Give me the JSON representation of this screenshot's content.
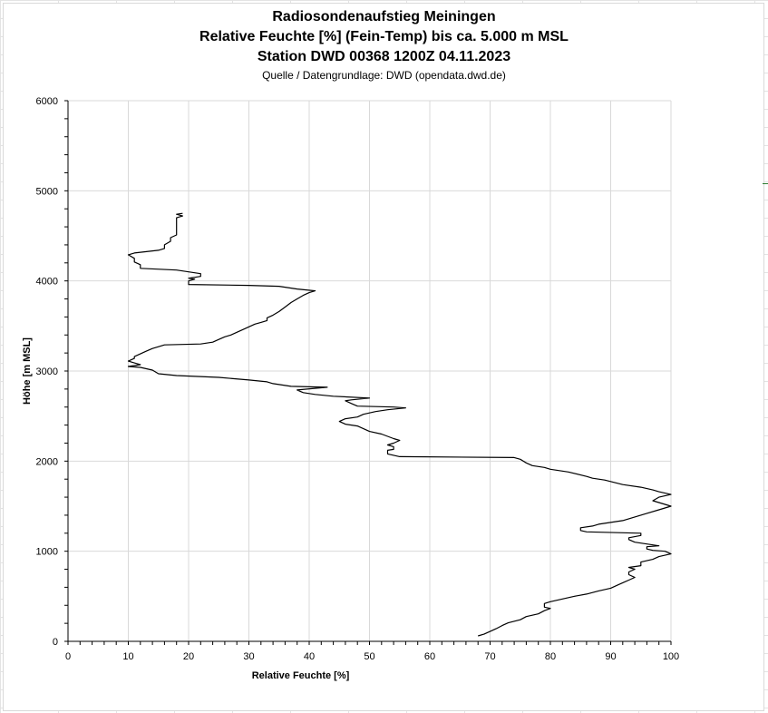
{
  "chart_data": {
    "type": "line",
    "title": "Radiosondenaufstieg Meiningen",
    "subtitle_1": "Relative Feuchte [%] (Fein-Temp) bis ca. 5.000 m MSL",
    "subtitle_2": "Station DWD 00368 1200Z 04.11.2023",
    "source": "Quelle / Datengrundlage: DWD (opendata.dwd.de)",
    "xlabel": "Relative Feuchte [%]",
    "ylabel": "Höhe [m MSL]",
    "xlim": [
      0,
      100
    ],
    "ylim": [
      0,
      6000
    ],
    "x_ticks": [
      0,
      10,
      20,
      30,
      40,
      50,
      60,
      70,
      80,
      90,
      100
    ],
    "y_ticks": [
      0,
      1000,
      2000,
      3000,
      4000,
      5000,
      6000
    ],
    "grid": true,
    "line_color": "#000000",
    "series": [
      {
        "points": [
          [
            68,
            60
          ],
          [
            69,
            80
          ],
          [
            70,
            110
          ],
          [
            71,
            140
          ],
          [
            72,
            175
          ],
          [
            73,
            205
          ],
          [
            75,
            240
          ],
          [
            76,
            275
          ],
          [
            78,
            305
          ],
          [
            79,
            340
          ],
          [
            80,
            365
          ],
          [
            79,
            380
          ],
          [
            79,
            420
          ],
          [
            80,
            440
          ],
          [
            82,
            470
          ],
          [
            84,
            500
          ],
          [
            86,
            525
          ],
          [
            88,
            560
          ],
          [
            90,
            590
          ],
          [
            91,
            620
          ],
          [
            92,
            650
          ],
          [
            93,
            680
          ],
          [
            94,
            710
          ],
          [
            93,
            740
          ],
          [
            93,
            770
          ],
          [
            94,
            800
          ],
          [
            93,
            820
          ],
          [
            95,
            840
          ],
          [
            95,
            880
          ],
          [
            97,
            910
          ],
          [
            98,
            940
          ],
          [
            100,
            970
          ],
          [
            99,
            1000
          ],
          [
            97,
            1010
          ],
          [
            96,
            1025
          ],
          [
            96,
            1050
          ],
          [
            98,
            1060
          ],
          [
            96,
            1080
          ],
          [
            94,
            1100
          ],
          [
            93,
            1130
          ],
          [
            93,
            1150
          ],
          [
            95,
            1175
          ],
          [
            95,
            1200
          ],
          [
            86,
            1215
          ],
          [
            85,
            1230
          ],
          [
            85,
            1260
          ],
          [
            87,
            1280
          ],
          [
            88,
            1300
          ],
          [
            92,
            1340
          ],
          [
            94,
            1380
          ],
          [
            96,
            1420
          ],
          [
            98,
            1460
          ],
          [
            100,
            1500
          ],
          [
            98,
            1540
          ],
          [
            97,
            1560
          ],
          [
            98,
            1600
          ],
          [
            100,
            1630
          ],
          [
            98,
            1660
          ],
          [
            97,
            1680
          ],
          [
            95,
            1710
          ],
          [
            92,
            1740
          ],
          [
            89,
            1790
          ],
          [
            87,
            1810
          ],
          [
            86,
            1830
          ],
          [
            83,
            1880
          ],
          [
            80,
            1910
          ],
          [
            79,
            1930
          ],
          [
            77,
            1950
          ],
          [
            76,
            1980
          ],
          [
            75,
            2020
          ],
          [
            74,
            2040
          ],
          [
            55,
            2050
          ],
          [
            53,
            2080
          ],
          [
            53,
            2120
          ],
          [
            54,
            2130
          ],
          [
            54,
            2160
          ],
          [
            53,
            2180
          ],
          [
            54,
            2200
          ],
          [
            55,
            2230
          ],
          [
            54,
            2250
          ],
          [
            52,
            2300
          ],
          [
            50,
            2330
          ],
          [
            49,
            2360
          ],
          [
            48,
            2390
          ],
          [
            46,
            2410
          ],
          [
            45,
            2440
          ],
          [
            46,
            2470
          ],
          [
            48,
            2490
          ],
          [
            49,
            2520
          ],
          [
            51,
            2550
          ],
          [
            53,
            2570
          ],
          [
            56,
            2590
          ],
          [
            54,
            2600
          ],
          [
            48,
            2610
          ],
          [
            47,
            2640
          ],
          [
            46,
            2670
          ],
          [
            47,
            2680
          ],
          [
            50,
            2700
          ],
          [
            44,
            2720
          ],
          [
            41,
            2740
          ],
          [
            39,
            2760
          ],
          [
            38,
            2790
          ],
          [
            43,
            2820
          ],
          [
            37,
            2830
          ],
          [
            34,
            2860
          ],
          [
            33,
            2880
          ],
          [
            30,
            2900
          ],
          [
            25,
            2930
          ],
          [
            18,
            2950
          ],
          [
            15,
            2970
          ],
          [
            14,
            3010
          ],
          [
            12,
            3040
          ],
          [
            10,
            3050
          ],
          [
            12,
            3070
          ],
          [
            11,
            3090
          ],
          [
            10,
            3110
          ],
          [
            11,
            3140
          ],
          [
            11,
            3160
          ],
          [
            12,
            3190
          ],
          [
            13,
            3220
          ],
          [
            14,
            3250
          ],
          [
            15,
            3270
          ],
          [
            16,
            3290
          ],
          [
            22,
            3300
          ],
          [
            24,
            3320
          ],
          [
            25,
            3350
          ],
          [
            26,
            3380
          ],
          [
            27,
            3400
          ],
          [
            28,
            3430
          ],
          [
            29,
            3460
          ],
          [
            30,
            3490
          ],
          [
            31,
            3520
          ],
          [
            32,
            3540
          ],
          [
            33,
            3560
          ],
          [
            33,
            3590
          ],
          [
            34,
            3620
          ],
          [
            35,
            3660
          ],
          [
            36,
            3710
          ],
          [
            37,
            3760
          ],
          [
            38,
            3800
          ],
          [
            39,
            3840
          ],
          [
            40,
            3870
          ],
          [
            41,
            3890
          ],
          [
            38,
            3910
          ],
          [
            35,
            3940
          ],
          [
            30,
            3950
          ],
          [
            20,
            3960
          ],
          [
            20,
            4000
          ],
          [
            21,
            4020
          ],
          [
            20,
            4030
          ],
          [
            22,
            4050
          ],
          [
            22,
            4080
          ],
          [
            18,
            4120
          ],
          [
            12,
            4140
          ],
          [
            12,
            4180
          ],
          [
            11,
            4210
          ],
          [
            11,
            4250
          ],
          [
            10,
            4290
          ],
          [
            11,
            4310
          ],
          [
            15,
            4340
          ],
          [
            16,
            4360
          ],
          [
            16,
            4400
          ],
          [
            17,
            4440
          ],
          [
            17,
            4480
          ],
          [
            18,
            4510
          ],
          [
            18,
            4560
          ],
          [
            18,
            4600
          ],
          [
            18,
            4650
          ],
          [
            18,
            4700
          ],
          [
            19,
            4720
          ],
          [
            18,
            4740
          ],
          [
            19,
            4750
          ]
        ]
      }
    ]
  }
}
